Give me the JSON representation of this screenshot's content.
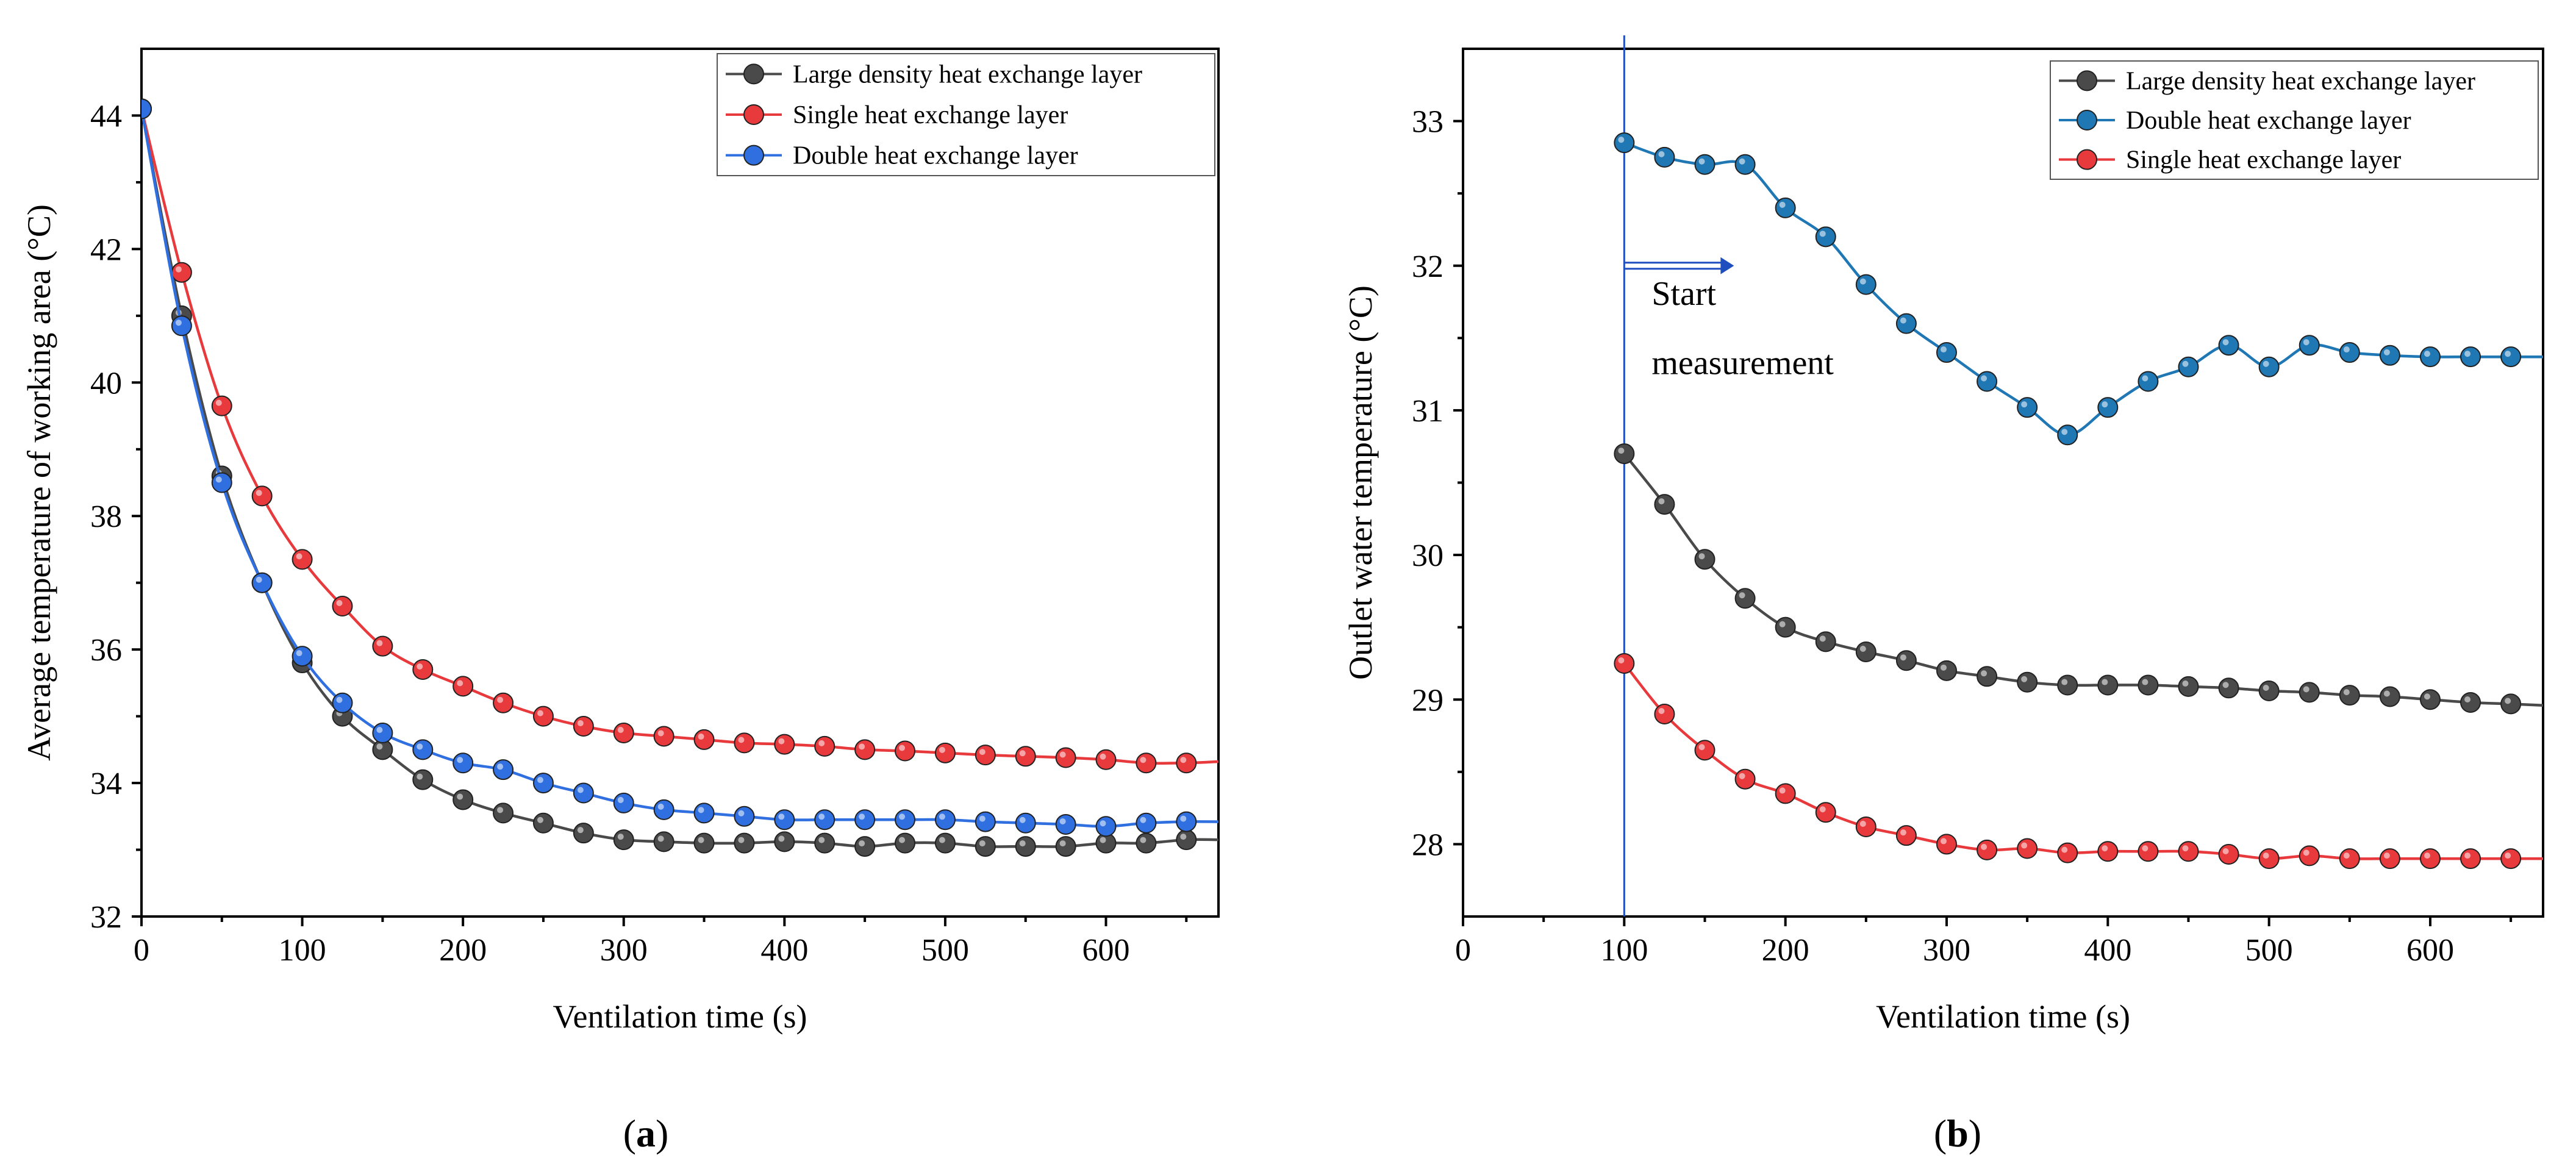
{
  "chart_data": [
    {
      "panel": "a",
      "panel_label": "(a)",
      "type": "line",
      "title": "",
      "xlabel": "Ventilation time (s)",
      "ylabel": "Average temperature of working area (°C)",
      "xlim": [
        0,
        670
      ],
      "ylim": [
        32,
        45
      ],
      "xticks": [
        0,
        100,
        200,
        300,
        400,
        500,
        600
      ],
      "yticks": [
        32,
        34,
        36,
        38,
        40,
        42,
        44
      ],
      "legend_position": "top-right",
      "x": [
        0,
        25,
        50,
        75,
        100,
        125,
        150,
        175,
        200,
        225,
        250,
        275,
        300,
        325,
        350,
        375,
        400,
        425,
        450,
        475,
        500,
        525,
        550,
        575,
        600,
        625,
        650,
        670
      ],
      "series": [
        {
          "name": "Large density heat exchange layer",
          "color": "#4a4a4a",
          "values": [
            44.1,
            41.0,
            38.6,
            37.0,
            35.8,
            35.0,
            34.5,
            34.05,
            33.75,
            33.55,
            33.4,
            33.25,
            33.15,
            33.12,
            33.1,
            33.1,
            33.12,
            33.1,
            33.05,
            33.1,
            33.1,
            33.05,
            33.05,
            33.05,
            33.1,
            33.1,
            33.15,
            33.15
          ]
        },
        {
          "name": "Single heat exchange layer",
          "color": "#e8393c",
          "values": [
            44.1,
            41.65,
            39.65,
            38.3,
            37.35,
            36.65,
            36.05,
            35.7,
            35.45,
            35.2,
            35.0,
            34.85,
            34.75,
            34.7,
            34.65,
            34.6,
            34.58,
            34.55,
            34.5,
            34.48,
            34.45,
            34.42,
            34.4,
            34.38,
            34.35,
            34.3,
            34.3,
            34.32
          ]
        },
        {
          "name": "Double heat exchange layer",
          "color": "#2f6fe0",
          "values": [
            44.1,
            40.85,
            38.5,
            37.0,
            35.9,
            35.2,
            34.75,
            34.5,
            34.3,
            34.2,
            34.0,
            33.85,
            33.7,
            33.6,
            33.55,
            33.5,
            33.45,
            33.45,
            33.45,
            33.45,
            33.45,
            33.42,
            33.4,
            33.38,
            33.35,
            33.4,
            33.42,
            33.42
          ]
        }
      ]
    },
    {
      "panel": "b",
      "panel_label": "(b)",
      "type": "line",
      "title": "",
      "xlabel": "Ventilation time (s)",
      "ylabel": "Outlet water temperature (°C)",
      "xlim": [
        0,
        670
      ],
      "ylim": [
        27.5,
        33.5
      ],
      "xticks": [
        0,
        100,
        200,
        300,
        400,
        500,
        600
      ],
      "yticks": [
        28,
        29,
        30,
        31,
        32,
        33
      ],
      "legend_position": "top-right",
      "vline_x": 100,
      "annotation": [
        "Start",
        "measurement"
      ],
      "x": [
        100,
        125,
        150,
        175,
        200,
        225,
        250,
        275,
        300,
        325,
        350,
        375,
        400,
        425,
        450,
        475,
        500,
        525,
        550,
        575,
        600,
        625,
        650,
        670
      ],
      "series": [
        {
          "name": "Large density heat exchange layer",
          "color": "#4a4a4a",
          "values": [
            30.7,
            30.35,
            29.97,
            29.7,
            29.5,
            29.4,
            29.33,
            29.27,
            29.2,
            29.16,
            29.12,
            29.1,
            29.1,
            29.1,
            29.09,
            29.08,
            29.06,
            29.05,
            29.03,
            29.02,
            29.0,
            28.98,
            28.97,
            28.96
          ]
        },
        {
          "name": "Double heat exchange layer",
          "color": "#1f77b4",
          "values": [
            32.85,
            32.75,
            32.7,
            32.7,
            32.4,
            32.2,
            31.87,
            31.6,
            31.4,
            31.2,
            31.02,
            30.83,
            31.02,
            31.2,
            31.3,
            31.45,
            31.3,
            31.45,
            31.4,
            31.38,
            31.37,
            31.37,
            31.37,
            31.37
          ]
        },
        {
          "name": "Single heat exchange layer",
          "color": "#e8393c",
          "values": [
            29.25,
            28.9,
            28.65,
            28.45,
            28.35,
            28.22,
            28.12,
            28.06,
            28.0,
            27.96,
            27.97,
            27.94,
            27.95,
            27.95,
            27.95,
            27.93,
            27.9,
            27.92,
            27.9,
            27.9,
            27.9,
            27.9,
            27.9,
            27.9
          ]
        }
      ]
    }
  ]
}
